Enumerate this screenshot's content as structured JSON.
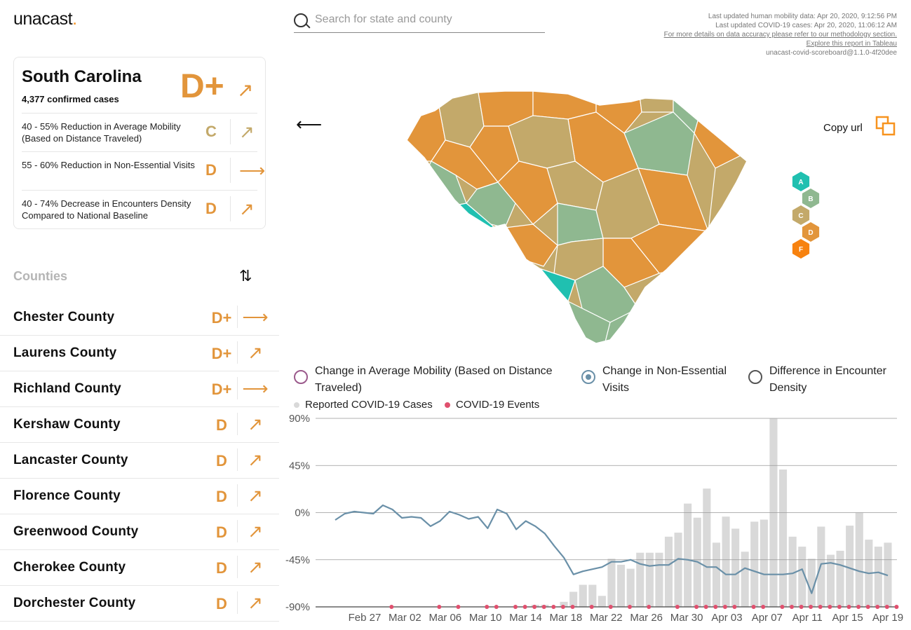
{
  "brand": {
    "name": "unacast",
    "dot": "."
  },
  "search": {
    "placeholder": "Search for state and county"
  },
  "info": {
    "line1": "Last updated human mobility data: Apr 20, 2020, 9:12:56 PM",
    "line2": "Last updated COVID-19 cases: Apr 20, 2020, 11:06:12 AM",
    "line3": "For more details on data accuracy please refer to our methodology section.",
    "line4": "Explore this report in Tableau",
    "line5": "unacast-covid-scoreboard@1.1.0-4f20dee"
  },
  "state_card": {
    "name": "South Carolina",
    "cases": "4,377 confirmed cases",
    "grade": "D+",
    "trend_icon": "arrow-up-right-icon",
    "metrics": [
      {
        "text": "40 - 55% Reduction in Average Mobility (Based on Distance Traveled)",
        "grade": "C",
        "grade_color": "#c3a96a",
        "arrow": "↗",
        "arrow_color": "#c3a96a"
      },
      {
        "text": "55 - 60% Reduction in Non-Essential Visits",
        "grade": "D",
        "grade_color": "#e2953b",
        "arrow": "⟶",
        "arrow_color": "#e2953b"
      },
      {
        "text": "40 - 74% Decrease in Encounters Density Compared to National Baseline",
        "grade": "D",
        "grade_color": "#e2953b",
        "arrow": "↗",
        "arrow_color": "#e2953b"
      }
    ]
  },
  "counties": {
    "title": "Counties",
    "sort_icon": "sort-icon",
    "items": [
      {
        "name": "Chester County",
        "grade": "D+",
        "arrow": "⟶"
      },
      {
        "name": "Laurens County",
        "grade": "D+",
        "arrow": "↗"
      },
      {
        "name": "Richland County",
        "grade": "D+",
        "arrow": "⟶"
      },
      {
        "name": "Kershaw County",
        "grade": "D",
        "arrow": "↗"
      },
      {
        "name": "Lancaster County",
        "grade": "D",
        "arrow": "↗"
      },
      {
        "name": "Florence County",
        "grade": "D",
        "arrow": "↗"
      },
      {
        "name": "Greenwood County",
        "grade": "D",
        "arrow": "↗"
      },
      {
        "name": "Cherokee County",
        "grade": "D",
        "arrow": "↗"
      },
      {
        "name": "Dorchester County",
        "grade": "D",
        "arrow": "↗"
      }
    ]
  },
  "map": {
    "back_icon": "arrow-left-icon",
    "copy_label": "Copy url",
    "copy_icon": "copy-icon",
    "legend": [
      {
        "grade": "A",
        "color": "#20c0b0"
      },
      {
        "grade": "B",
        "color": "#8fb890"
      },
      {
        "grade": "C",
        "color": "#c3a96a"
      },
      {
        "grade": "D",
        "color": "#e2953b"
      },
      {
        "grade": "F",
        "color": "#f7820f"
      }
    ]
  },
  "chart_selector": [
    {
      "label": "Change in Average Mobility (Based on Distance Traveled)",
      "selected": false
    },
    {
      "label": "Change in Non-Essential Visits",
      "selected": true
    },
    {
      "label": "Difference in Encounter Density",
      "selected": false
    }
  ],
  "chart_legend": [
    {
      "label": "Reported COVID-19 Cases",
      "color": "#d9d9d9"
    },
    {
      "label": "COVID-19 Events",
      "color": "#e0506e"
    }
  ],
  "chart_data": {
    "type": "line",
    "ylim": [
      -90,
      90
    ],
    "yticks": [
      "90%",
      "45%",
      "0%",
      "-45%",
      "-90%"
    ],
    "ytick_values": [
      90,
      45,
      0,
      -45,
      -90
    ],
    "xticks": [
      "Feb 27",
      "Mar 02",
      "Mar 06",
      "Mar 10",
      "Mar 14",
      "Mar 18",
      "Mar 22",
      "Mar 26",
      "Mar 30",
      "Apr 03",
      "Apr 07",
      "Apr 11",
      "Apr 15",
      "Apr 19"
    ],
    "series": [
      {
        "name": "Change in Non-Essential Visits",
        "color": "#6a90a8",
        "values": [
          -7,
          -1,
          1,
          0,
          -1,
          7,
          3,
          -5,
          -4,
          -5,
          -13,
          -8,
          1,
          -2,
          -6,
          -4,
          -15,
          3,
          -1,
          -16,
          -8,
          -13,
          -20,
          -32,
          -43,
          -59,
          -56,
          -54,
          -52,
          -47,
          -47,
          -45,
          -49,
          -51,
          -50,
          -50,
          -44,
          -45,
          -47,
          -52,
          -52,
          -59,
          -59,
          -53,
          -56,
          -59,
          -59,
          -59,
          -58,
          -54,
          -77,
          -49,
          -48,
          -50,
          -53,
          -56,
          -58,
          -57,
          -60
        ]
      }
    ],
    "bars": {
      "name": "Reported COVID-19 Cases",
      "color": "#d9d9d9",
      "values": [
        0,
        0,
        0,
        0,
        0,
        0,
        0,
        0,
        0,
        0,
        0,
        0,
        0,
        0,
        0,
        0,
        0,
        0,
        0,
        0,
        0,
        2,
        2,
        0,
        5,
        15,
        22,
        22,
        11,
        48,
        42,
        38,
        54,
        54,
        54,
        70,
        74,
        103,
        89,
        118,
        64,
        90,
        78,
        55,
        85,
        87,
        188,
        137,
        70,
        60,
        48,
        80,
        52,
        56,
        81,
        94,
        67,
        60,
        64
      ],
      "scale_max": 188
    },
    "events": [
      5,
      10,
      12,
      15,
      16,
      18,
      19,
      20,
      21,
      22,
      23,
      24,
      26,
      28,
      30,
      32,
      35,
      37,
      38,
      39,
      40,
      41,
      43,
      44,
      46,
      47,
      48,
      49,
      50,
      51,
      52,
      53,
      54,
      55,
      56,
      57,
      58,
      59
    ],
    "events_count_days": 59
  }
}
